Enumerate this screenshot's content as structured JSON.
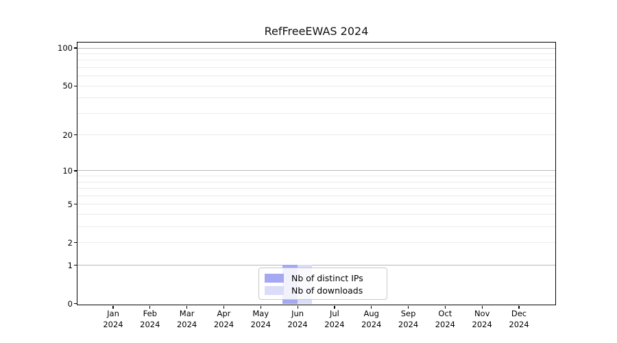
{
  "title": "RefFreeEWAS 2024",
  "chart_data": {
    "type": "bar",
    "title": "RefFreeEWAS 2024",
    "categories": [
      "Jan 2024",
      "Feb 2024",
      "Mar 2024",
      "Apr 2024",
      "May 2024",
      "Jun 2024",
      "Jul 2024",
      "Aug 2024",
      "Sep 2024",
      "Oct 2024",
      "Nov 2024",
      "Dec 2024"
    ],
    "series": [
      {
        "name": "Nb of distinct IPs",
        "color": "#a5a9f1",
        "values": [
          0,
          0,
          0,
          0,
          0,
          1,
          0,
          0,
          0,
          0,
          0,
          0
        ]
      },
      {
        "name": "Nb of downloads",
        "color": "#dadcf8",
        "values": [
          0,
          0,
          0,
          0,
          0,
          1,
          0,
          0,
          0,
          0,
          0,
          0
        ]
      }
    ],
    "xlabel": "",
    "ylabel": "",
    "yscale": "log1p",
    "ylim": [
      0,
      110
    ],
    "y_tick_values": [
      0,
      1,
      2,
      5,
      10,
      20,
      50,
      100
    ],
    "y_major_gridlines": [
      1,
      10,
      100
    ],
    "y_minor_gridlines": [
      2,
      3,
      4,
      5,
      6,
      7,
      8,
      9,
      20,
      30,
      40,
      50,
      60,
      70,
      80,
      90
    ],
    "grid": "horizontal",
    "legend_position": "lower center",
    "colors": {
      "major_grid": "#b8b8b8",
      "minor_grid": "#ebebeb",
      "spine": "#000000",
      "background": "#ffffff"
    }
  }
}
